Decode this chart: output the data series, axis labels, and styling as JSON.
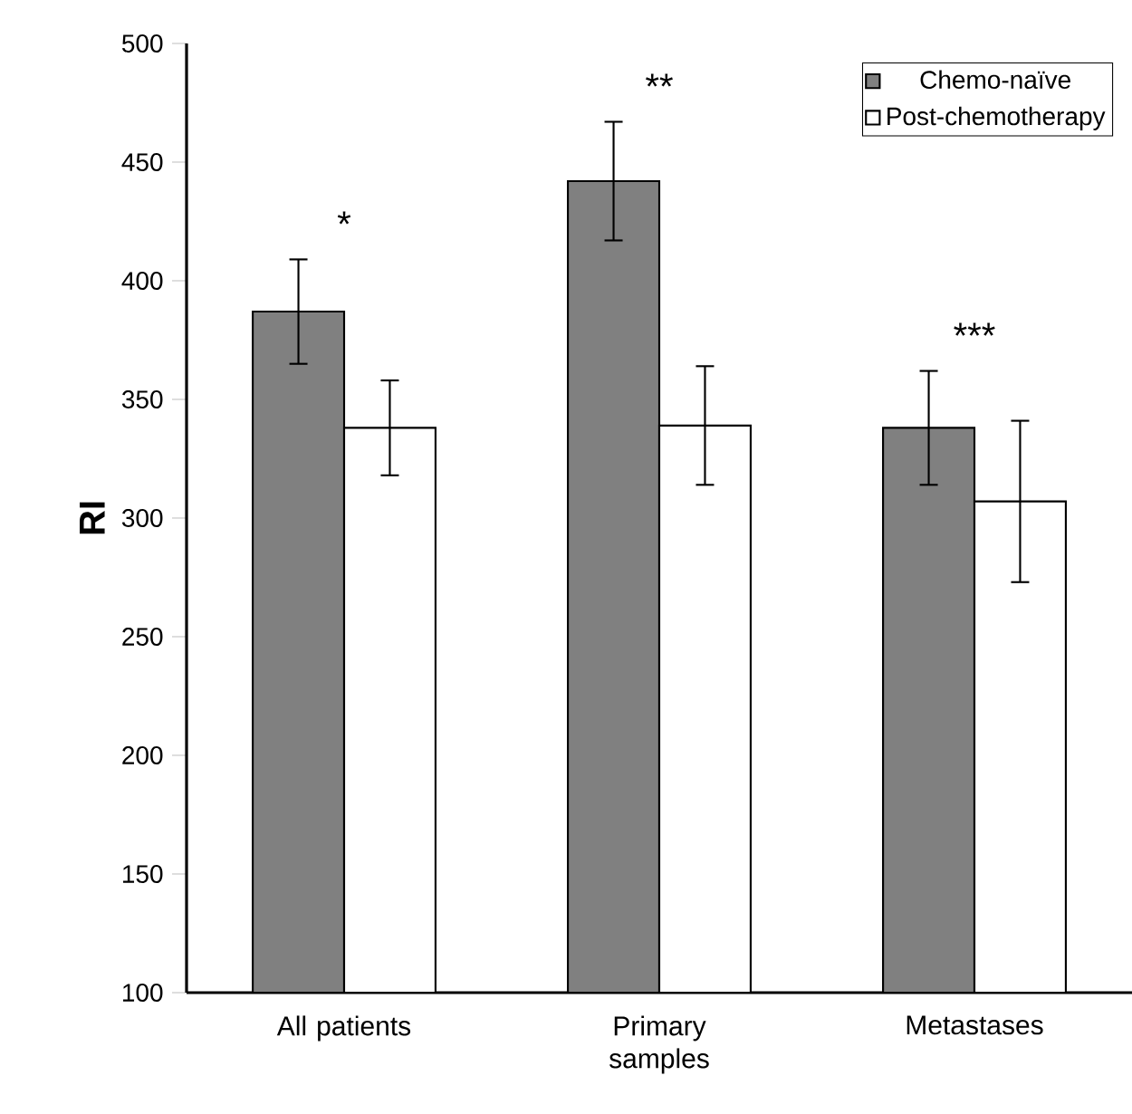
{
  "chart_data": {
    "type": "bar",
    "ylabel": "RI",
    "categories": [
      "All patients",
      "Primary samples",
      "Metastases"
    ],
    "series": [
      {
        "name": "Chemo-naïve",
        "color": "#808080",
        "values": [
          387,
          442,
          338
        ],
        "errors": [
          22,
          25,
          24
        ]
      },
      {
        "name": "Post-chemotherapy",
        "color": "#ffffff",
        "values": [
          338,
          339,
          307
        ],
        "errors": [
          20,
          25,
          34
        ]
      }
    ],
    "ylim": [
      100,
      500
    ],
    "yticks": [
      100,
      150,
      200,
      250,
      300,
      350,
      400,
      450,
      500
    ],
    "grid": false,
    "legend": "top right",
    "annotations": [
      "*",
      "**",
      "***"
    ]
  }
}
